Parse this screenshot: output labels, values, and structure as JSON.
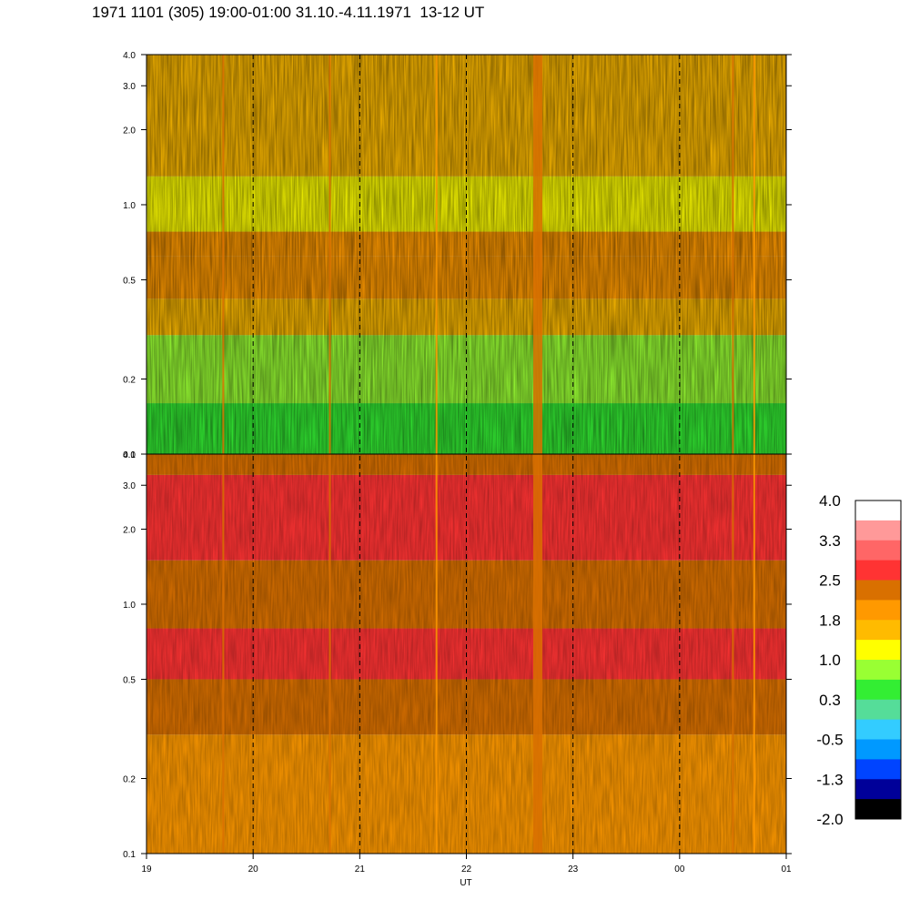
{
  "title": "1971 1101 (305) 19:00-01:00 31.10.-4.11.1971  13-12 UT",
  "chart_data": {
    "type": "heatmap",
    "title": "1971 1101 (305) 19:00-01:00 31.10.-4.11.1971  13-12 UT",
    "xlabel": "UT",
    "ylabel": "",
    "x_ticks": [
      "19",
      "20",
      "21",
      "22",
      "23",
      "00",
      "01"
    ],
    "x_range_hours": [
      19,
      25
    ],
    "y_scale": "log",
    "ylim": [
      0.1,
      4.0
    ],
    "y_ticks": [
      0.1,
      0.2,
      0.5,
      1.0,
      2.0,
      3.0,
      4.0
    ],
    "y_tick_labels": [
      "0.1",
      "0.2",
      "0.5",
      "1.0",
      "2.0",
      "3.0",
      "4.0"
    ],
    "panels": [
      {
        "name": "upper",
        "bands": [
          {
            "from": 0.1,
            "to": 0.16,
            "level": 9
          },
          {
            "from": 0.16,
            "to": 0.3,
            "level": 8
          },
          {
            "from": 0.3,
            "to": 0.42,
            "level": 6
          },
          {
            "from": 0.42,
            "to": 0.62,
            "level": 5
          },
          {
            "from": 0.62,
            "to": 0.78,
            "level": 5
          },
          {
            "from": 0.78,
            "to": 1.3,
            "level": 7
          },
          {
            "from": 1.3,
            "to": 4.0,
            "level": 6
          }
        ]
      },
      {
        "name": "lower",
        "bands": [
          {
            "from": 0.1,
            "to": 0.3,
            "level": 5
          },
          {
            "from": 0.3,
            "to": 0.5,
            "level": 4
          },
          {
            "from": 0.5,
            "to": 0.8,
            "level": 3
          },
          {
            "from": 0.8,
            "to": 1.5,
            "level": 4
          },
          {
            "from": 1.5,
            "to": 3.3,
            "level": 3
          },
          {
            "from": 3.3,
            "to": 4.0,
            "level": 4
          }
        ]
      }
    ],
    "vertical_events": [
      {
        "x": 19.72,
        "level": 1
      },
      {
        "x": 20.72,
        "level": 1
      },
      {
        "x": 21.72,
        "level": 2
      },
      {
        "x": 22.67,
        "level": 1
      },
      {
        "x": 24.5,
        "level": 1
      },
      {
        "x": 24.7,
        "level": 2
      }
    ],
    "dashed_gridlines_x": [
      20,
      21,
      22,
      23,
      24
    ],
    "colorbar": {
      "colors": [
        "#ffffff",
        "#ff9999",
        "#ff6666",
        "#ff3333",
        "#d97000",
        "#ff9900",
        "#ffbb00",
        "#ffff00",
        "#99ff33",
        "#33ee33",
        "#55dd99",
        "#33ccff",
        "#0099ff",
        "#0044ff",
        "#000099",
        "#000000"
      ],
      "tick_labels": [
        "4.0",
        "3.3",
        "2.5",
        "1.8",
        "1.0",
        "0.3",
        "-0.5",
        "-1.3",
        "-2.0"
      ]
    }
  }
}
